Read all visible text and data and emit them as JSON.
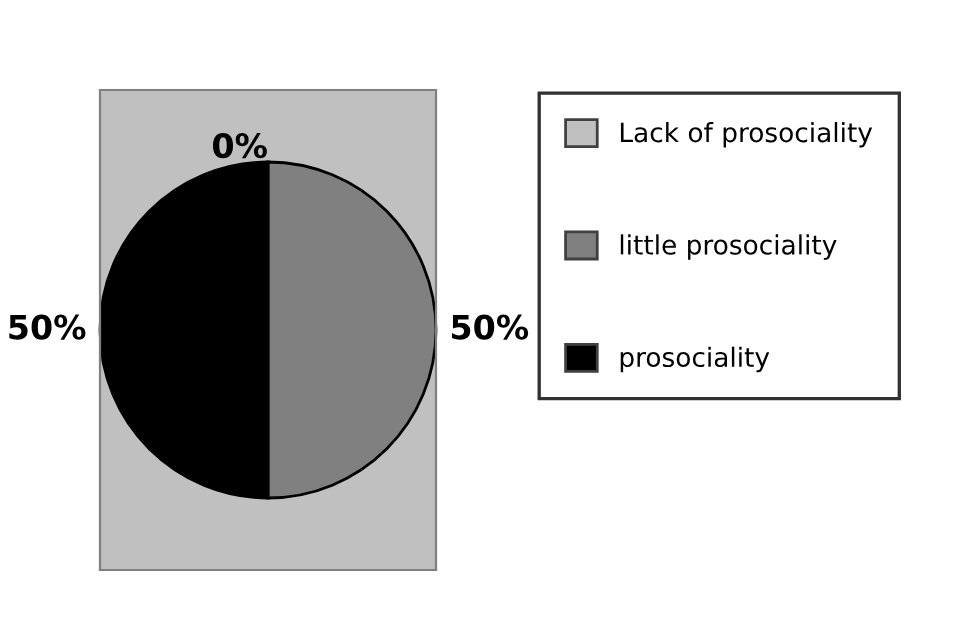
{
  "chart_data": {
    "type": "pie",
    "categories": [
      "Lack of prosociality",
      "little prosociality",
      "prosociality"
    ],
    "values": [
      0,
      50,
      50
    ],
    "value_labels": [
      "0%",
      "50%",
      "50%"
    ],
    "colors": [
      "#c0c0c0",
      "#808080",
      "#000000"
    ],
    "legend": "right"
  }
}
